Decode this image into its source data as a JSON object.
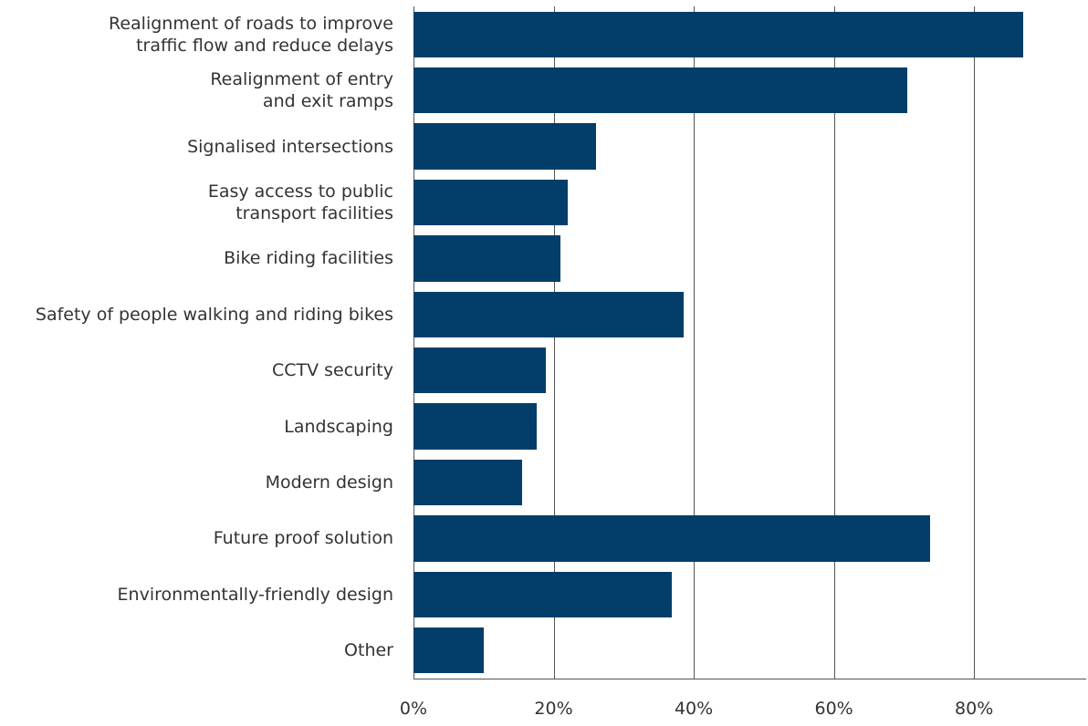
{
  "chart_data": {
    "type": "bar",
    "orientation": "horizontal",
    "categories": [
      "Realignment of roads to improve\ntraffic flow and reduce delays",
      "Realignment of entry\nand exit ramps",
      "Signalised intersections",
      "Easy access to public\ntransport facilities",
      "Bike riding facilities",
      "Safety of people walking and riding bikes",
      "CCTV security",
      "Landscaping",
      "Modern design",
      "Future proof solution",
      "Environmentally-friendly design",
      "Other"
    ],
    "values": [
      87,
      70.5,
      26,
      22,
      21,
      38.6,
      18.9,
      17.6,
      15.5,
      73.7,
      36.9,
      10
    ],
    "color": "#023e69",
    "xlim": [
      0,
      96
    ],
    "xticks": [
      {
        "value": 0,
        "label": "0%"
      },
      {
        "value": 20,
        "label": "20%"
      },
      {
        "value": 40,
        "label": "40%"
      },
      {
        "value": 60,
        "label": "60%"
      },
      {
        "value": 80,
        "label": "80%"
      }
    ],
    "grid": true
  }
}
